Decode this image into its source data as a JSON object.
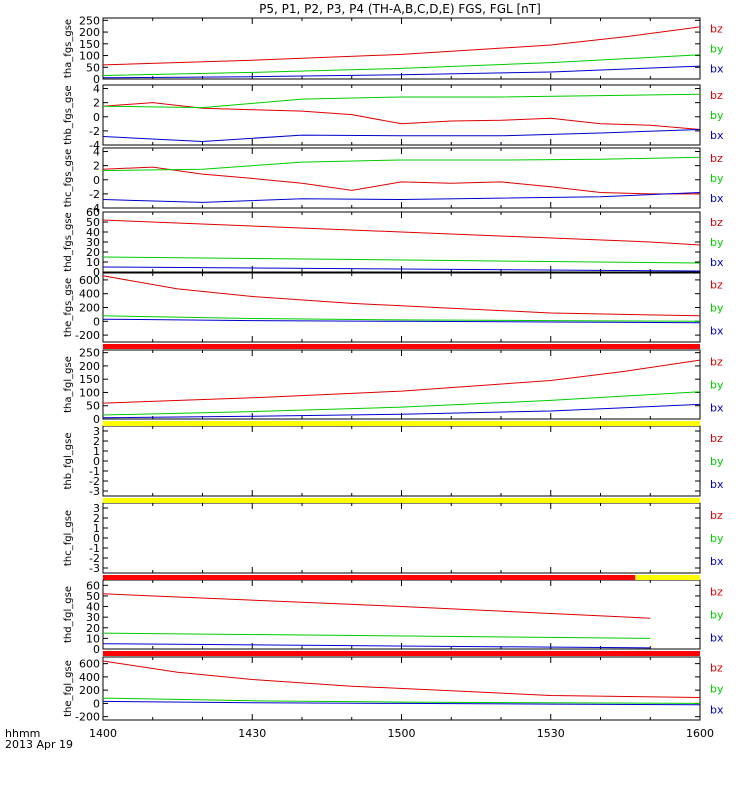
{
  "title": "P5, P1, P2, P3, P4 (TH-A,B,C,D,E) FGS, FGL [nT]",
  "colors": {
    "bz": "#dd0000",
    "by": "#00cc00",
    "bx": "#0000cc",
    "yellow": "#ffff00",
    "red": "#ff0000"
  },
  "xaxis": {
    "ticks": [
      "1400",
      "1430",
      "1500",
      "1530",
      "1600"
    ],
    "label_line1": "hhmm",
    "label_line2": "2013 Apr 19",
    "range_minutes": [
      0,
      120
    ]
  },
  "chart_data": [
    {
      "type": "line",
      "ylabel": "tha_fgs_gse",
      "yticks": [
        "250",
        "200",
        "150",
        "100",
        "50",
        "0"
      ],
      "ylim": [
        0,
        260
      ],
      "series": [
        {
          "name": "bz",
          "x": [
            0,
            30,
            60,
            90,
            105,
            120
          ],
          "values": [
            60,
            80,
            105,
            145,
            180,
            222
          ]
        },
        {
          "name": "by",
          "x": [
            0,
            30,
            60,
            90,
            120
          ],
          "values": [
            15,
            28,
            45,
            70,
            103
          ]
        },
        {
          "name": "bx",
          "x": [
            0,
            30,
            60,
            90,
            120
          ],
          "values": [
            5,
            10,
            18,
            30,
            55
          ]
        }
      ]
    },
    {
      "type": "line",
      "ylabel": "thb_fgs_gse",
      "yticks": [
        "4",
        "2",
        "0",
        "-2",
        "-4"
      ],
      "ylim": [
        -4,
        4.5
      ],
      "series": [
        {
          "name": "bz",
          "x": [
            0,
            10,
            20,
            30,
            40,
            50,
            60,
            70,
            80,
            90,
            100,
            110,
            120
          ],
          "values": [
            1.5,
            2.0,
            1.2,
            1.0,
            0.8,
            0.3,
            -1.0,
            -0.6,
            -0.5,
            -0.2,
            -1.0,
            -1.2,
            -1.8
          ]
        },
        {
          "name": "by",
          "x": [
            0,
            20,
            40,
            60,
            80,
            100,
            120
          ],
          "values": [
            1.5,
            1.3,
            2.5,
            2.8,
            2.8,
            3.0,
            3.2
          ]
        },
        {
          "name": "bx",
          "x": [
            0,
            20,
            40,
            60,
            80,
            100,
            120
          ],
          "values": [
            -2.8,
            -3.5,
            -2.6,
            -2.7,
            -2.7,
            -2.3,
            -1.8
          ]
        }
      ]
    },
    {
      "type": "line",
      "ylabel": "thc_fgs_gse",
      "yticks": [
        "4",
        "2",
        "0",
        "-2",
        "-4"
      ],
      "ylim": [
        -4,
        4.5
      ],
      "series": [
        {
          "name": "bz",
          "x": [
            0,
            10,
            20,
            30,
            40,
            50,
            60,
            70,
            80,
            90,
            100,
            110,
            120
          ],
          "values": [
            1.5,
            1.8,
            0.8,
            0.2,
            -0.5,
            -1.5,
            -0.3,
            -0.5,
            -0.3,
            -1.0,
            -1.8,
            -2.0,
            -2.0
          ]
        },
        {
          "name": "by",
          "x": [
            0,
            20,
            40,
            60,
            80,
            100,
            120
          ],
          "values": [
            1.3,
            1.5,
            2.5,
            2.8,
            2.8,
            2.9,
            3.2
          ]
        },
        {
          "name": "bx",
          "x": [
            0,
            20,
            40,
            60,
            80,
            100,
            120
          ],
          "values": [
            -2.8,
            -3.2,
            -2.7,
            -2.8,
            -2.6,
            -2.4,
            -1.8
          ]
        }
      ]
    },
    {
      "type": "line",
      "ylabel": "thd_fgs_gse",
      "yticks": [
        "60",
        "50",
        "40",
        "30",
        "20",
        "10",
        "0"
      ],
      "ylim": [
        0,
        60
      ],
      "series": [
        {
          "name": "bz",
          "x": [
            0,
            60,
            110,
            120
          ],
          "values": [
            52,
            40,
            30,
            27
          ]
        },
        {
          "name": "by",
          "x": [
            0,
            120
          ],
          "values": [
            15,
            9
          ]
        },
        {
          "name": "bx",
          "x": [
            0,
            120
          ],
          "values": [
            5,
            1
          ]
        }
      ]
    },
    {
      "type": "line",
      "ylabel": "the_fgs_gse",
      "yticks": [
        "600",
        "400",
        "200",
        "0",
        "-200"
      ],
      "ylim": [
        -300,
        700
      ],
      "series": [
        {
          "name": "bz",
          "x": [
            0,
            15,
            30,
            50,
            70,
            90,
            120
          ],
          "values": [
            660,
            470,
            360,
            260,
            190,
            120,
            80
          ]
        },
        {
          "name": "by",
          "x": [
            0,
            30,
            60,
            90,
            120
          ],
          "values": [
            80,
            40,
            20,
            10,
            0
          ]
        },
        {
          "name": "bx",
          "x": [
            0,
            30,
            60,
            90,
            120
          ],
          "values": [
            30,
            10,
            0,
            -10,
            -20
          ]
        }
      ]
    },
    {
      "type": "line",
      "ylabel": "tha_fgl_gse",
      "yticks": [
        "250",
        "200",
        "150",
        "100",
        "50",
        "0"
      ],
      "ylim": [
        0,
        260
      ],
      "series": [
        {
          "name": "bz",
          "x": [
            0,
            30,
            60,
            90,
            105,
            120
          ],
          "values": [
            60,
            80,
            105,
            145,
            180,
            222
          ]
        },
        {
          "name": "by",
          "x": [
            0,
            30,
            60,
            90,
            120
          ],
          "values": [
            15,
            28,
            45,
            70,
            103
          ]
        },
        {
          "name": "bx",
          "x": [
            0,
            30,
            60,
            90,
            120
          ],
          "values": [
            5,
            10,
            18,
            30,
            55
          ]
        }
      ]
    },
    {
      "type": "line",
      "ylabel": "thb_fgl_gse",
      "yticks": [
        "3",
        "2",
        "1",
        "0",
        "-1",
        "-2",
        "-3"
      ],
      "ylim": [
        -3.5,
        3.5
      ],
      "series": []
    },
    {
      "type": "line",
      "ylabel": "thc_fgl_gse",
      "yticks": [
        "3",
        "2",
        "1",
        "0",
        "-1",
        "-2",
        "-3"
      ],
      "ylim": [
        -3.5,
        3.5
      ],
      "series": []
    },
    {
      "type": "line",
      "ylabel": "thd_fgl_gse",
      "yticks": [
        "60",
        "50",
        "40",
        "30",
        "20",
        "10",
        "0"
      ],
      "ylim": [
        0,
        65
      ],
      "series": [
        {
          "name": "bz",
          "x": [
            0,
            60,
            110
          ],
          "values": [
            52,
            40,
            29
          ]
        },
        {
          "name": "by",
          "x": [
            0,
            110
          ],
          "values": [
            15,
            10
          ]
        },
        {
          "name": "bx",
          "x": [
            0,
            110
          ],
          "values": [
            5,
            1
          ]
        }
      ]
    },
    {
      "type": "line",
      "ylabel": "the_fgl_gse",
      "yticks": [
        "600",
        "400",
        "200",
        "0",
        "-200"
      ],
      "ylim": [
        -250,
        700
      ],
      "series": [
        {
          "name": "bz",
          "x": [
            0,
            15,
            30,
            50,
            70,
            90,
            120
          ],
          "values": [
            640,
            470,
            360,
            260,
            190,
            120,
            90
          ]
        },
        {
          "name": "by",
          "x": [
            0,
            30,
            60,
            90,
            120
          ],
          "values": [
            80,
            40,
            20,
            10,
            0
          ]
        },
        {
          "name": "bx",
          "x": [
            0,
            30,
            60,
            90,
            120
          ],
          "values": [
            30,
            10,
            0,
            -10,
            -20
          ]
        }
      ]
    }
  ],
  "legend_labels": [
    "bz",
    "by",
    "bx"
  ],
  "status_bars": [
    {
      "after_panel": 4,
      "segments": [
        {
          "from": 0,
          "to": 120,
          "color": "red"
        }
      ]
    },
    {
      "after_panel": 5,
      "segments": [
        {
          "from": 0,
          "to": 120,
          "color": "yellow"
        }
      ]
    },
    {
      "after_panel": 6,
      "segments": [
        {
          "from": 0,
          "to": 120,
          "color": "yellow"
        }
      ]
    },
    {
      "after_panel": 7,
      "segments": [
        {
          "from": 0,
          "to": 107,
          "color": "red"
        },
        {
          "from": 107,
          "to": 120,
          "color": "yellow"
        }
      ]
    },
    {
      "after_panel": 8,
      "segments": [
        {
          "from": 0,
          "to": 120,
          "color": "red"
        }
      ]
    }
  ]
}
